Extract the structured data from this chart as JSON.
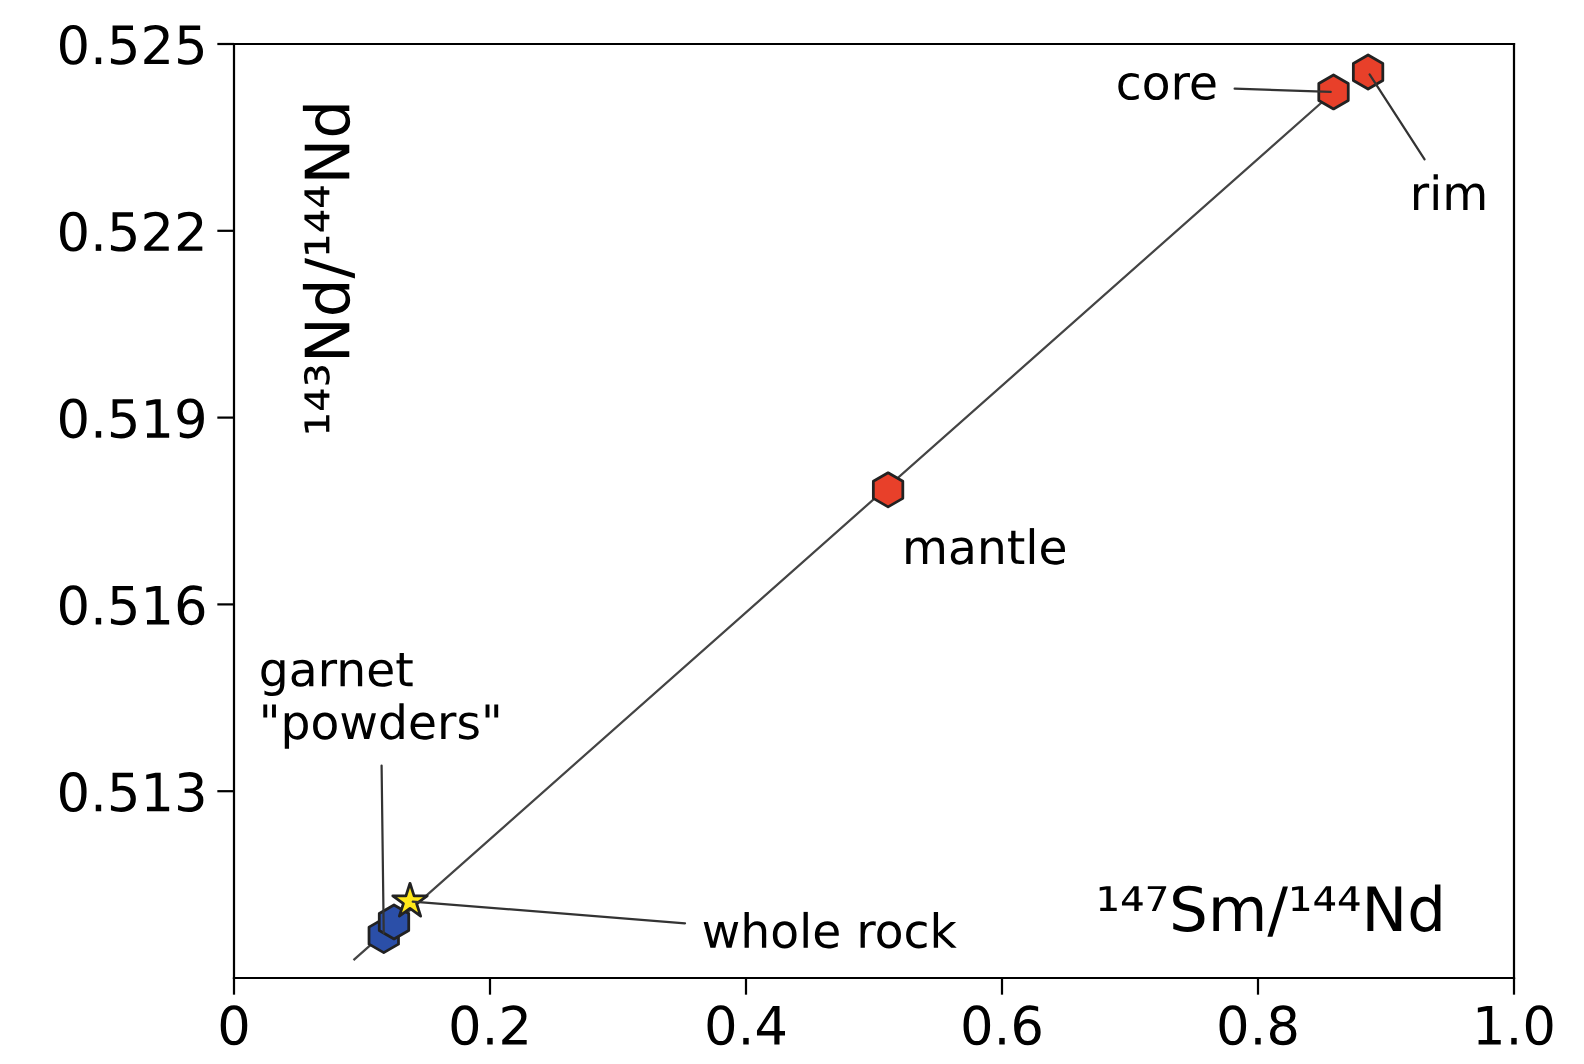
{
  "chart_data": {
    "type": "scatter",
    "xlabel": "¹⁴⁷Sm/¹⁴⁴Nd",
    "ylabel": "¹⁴³Nd/¹⁴⁴Nd",
    "xlim": [
      0,
      1.0
    ],
    "ylim": [
      0.51,
      0.525
    ],
    "xticks": [
      0,
      0.2,
      0.4,
      0.6,
      0.8,
      {
        "value": 1.0,
        "label": "1.0"
      }
    ],
    "yticks": [
      0.513,
      0.516,
      0.519,
      0.522,
      0.525
    ],
    "grid": false,
    "legend": false,
    "series": [
      {
        "type": "line",
        "color": "#444444",
        "marker": "none",
        "x": [
          0.094,
          0.859
        ],
        "values": [
          0.5103,
          0.52423
        ]
      },
      {
        "color": "#2b4fa8",
        "x": [
          0.117,
          0.125
        ],
        "values": [
          0.51068,
          0.5109
        ]
      },
      {
        "color": "#ffe81a",
        "marker": "star",
        "x": [
          0.1375
        ],
        "values": [
          0.51123
        ]
      },
      {
        "color": "#e8402a",
        "x": [
          0.511,
          0.859,
          0.886
        ],
        "values": [
          0.51784,
          0.52423,
          0.52455
        ]
      }
    ],
    "annotations": [
      {
        "text": "core",
        "x": 0.859,
        "y": 0.52423
      },
      {
        "text": "rim",
        "x": 0.886,
        "y": 0.52455
      },
      {
        "text": "mantle",
        "x": 0.511,
        "y": 0.51784
      },
      {
        "text": "whole rock",
        "x": 0.1375,
        "y": 0.51123
      },
      {
        "text": "garnet\n\"powders\"",
        "x": 0.117,
        "y": 0.51068
      }
    ]
  }
}
